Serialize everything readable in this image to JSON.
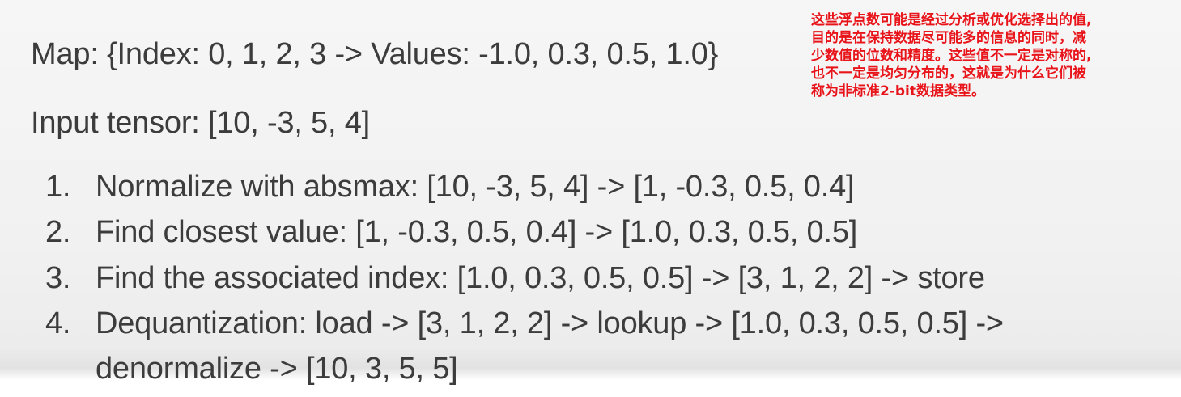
{
  "slide": {
    "map_line": "Map: {Index: 0, 1, 2, 3 -> Values: -1.0, 0.3, 0.5, 1.0}",
    "input_line": "Input tensor: [10, -3, 5, 4]",
    "steps": [
      {
        "num": "1.",
        "text": "Normalize with absmax: [10, -3, 5, 4] -> [1, -0.3, 0.5, 0.4]"
      },
      {
        "num": "2.",
        "text": "Find closest value: [1, -0.3, 0.5, 0.4] -> [1.0, 0.3, 0.5, 0.5]"
      },
      {
        "num": "3.",
        "text": "Find the associated index: [1.0, 0.3, 0.5, 0.5] -> [3, 1, 2, 2] -> store"
      },
      {
        "num": "4.",
        "text": "Dequantization: load -> [3, 1, 2, 2] -> lookup -> [1.0, 0.3, 0.5, 0.5]  ->",
        "continuation": "denormalize -> [10, 3, 5, 5]"
      }
    ]
  },
  "annotation": {
    "lines": [
      "这些浮点数可能是经过分析或优化选择出的值,",
      "目的是在保持数据尽可能多的信息的同时，减",
      "少数值的位数和精度。这些值不一定是对称的,",
      "也不一定是均匀分布的，这就是为什么它们被",
      "称为非标准2-bit数据类型。"
    ],
    "color": "#e8141a"
  }
}
